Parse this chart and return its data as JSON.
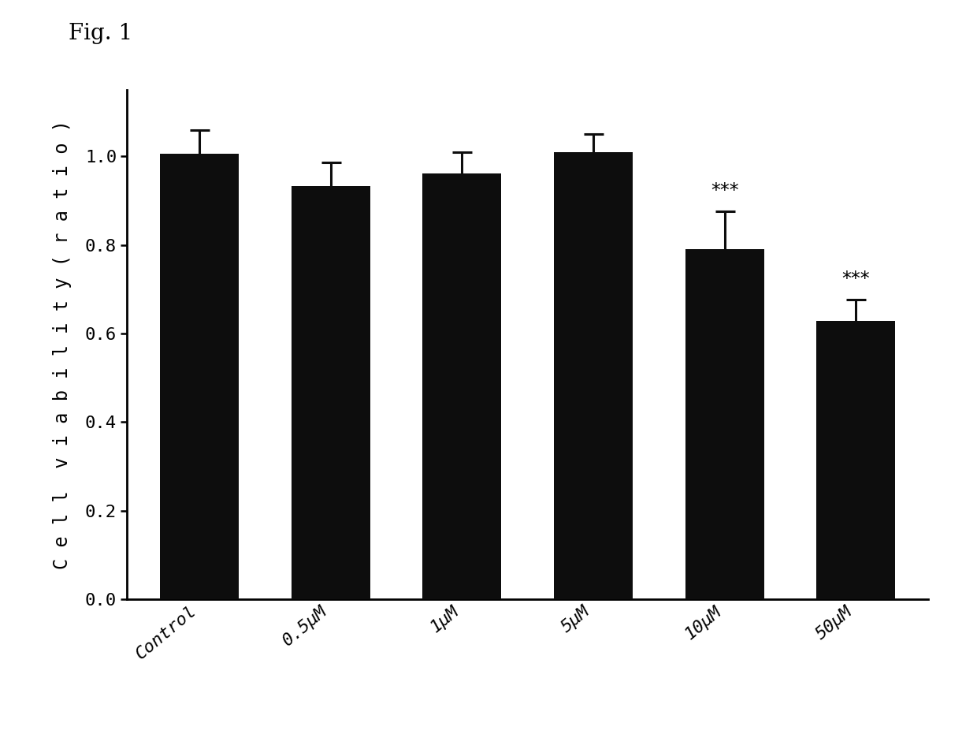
{
  "categories": [
    "Control",
    "0.5μM",
    "1μM",
    "5μM",
    "10μM",
    "50μM"
  ],
  "values": [
    1.005,
    0.932,
    0.962,
    1.01,
    0.79,
    0.628
  ],
  "errors": [
    0.055,
    0.055,
    0.048,
    0.04,
    0.085,
    0.048
  ],
  "bar_color": "#0d0d0d",
  "error_color": "#0d0d0d",
  "ylabel": "Cell viability(ratio)",
  "ylim": [
    0.0,
    1.15
  ],
  "yticks": [
    0.0,
    0.2,
    0.4,
    0.6,
    0.8,
    1.0
  ],
  "significance": [
    "",
    "",
    "",
    "",
    "***",
    "***"
  ],
  "fig_label": "Fig. 1",
  "background_color": "#ffffff",
  "bar_width": 0.6,
  "ylabel_fontsize": 17,
  "tick_fontsize": 16,
  "sig_fontsize": 17,
  "figlabel_fontsize": 20
}
